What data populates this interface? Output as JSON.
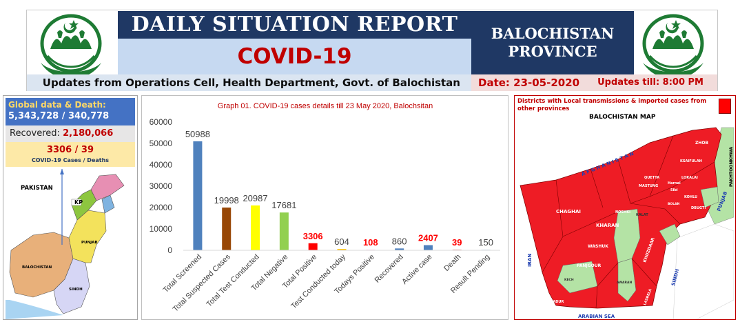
{
  "header": {
    "title": "DAILY SITUATION REPORT",
    "subtitle": "COVID-19",
    "province_line1": "BALOCHISTAN",
    "province_line2": "PROVINCE",
    "updates_from": "Updates from Operations Cell, Health Department, Govt. of Balochistan",
    "date": "Date: 23-05-2020",
    "updates_till": "Updates till: 8:00 PM"
  },
  "left_panel": {
    "global_title": "Global data & Death:",
    "global_value": "5,343,728 / 340,778",
    "recovered_label": "Recovered:",
    "recovered_value": "2,180,066",
    "cases_value": "3306 / 39",
    "cases_label": "COVID-19 Cases / Deaths",
    "map_labels": {
      "pakistan": "PAKISTAN",
      "kp": "KP",
      "punjab": "PUNJAB",
      "balochistan": "BALOCHISTAN",
      "sindh": "SINDH"
    }
  },
  "chart_data": {
    "type": "bar",
    "title": "Graph 01. COVID-19 cases details till 23 May 2020, Balochsitan",
    "xlabel": "",
    "ylabel": "",
    "ylim": [
      0,
      60000
    ],
    "yticks": [
      "0",
      "10000",
      "20000",
      "30000",
      "40000",
      "50000",
      "60000"
    ],
    "grid": false,
    "legend": "none",
    "categories": [
      "Total Screened",
      "Total Suspected Cases",
      "Total Test Conducted",
      "Total Negative",
      "Total Positive",
      "Test Conducted today",
      "Todays Positive",
      "Recovered",
      "Active case",
      "Death",
      "Result Pending"
    ],
    "values": [
      50988,
      19998,
      20987,
      17681,
      3306,
      604,
      108,
      860,
      2407,
      39,
      150
    ],
    "bar_colors": [
      "#4f81bd",
      "#984807",
      "#ffff00",
      "#92d050",
      "#ff0000",
      "#ffc000",
      "#ff99cc",
      "#4f81bd",
      "#4f81bd",
      "#c00000",
      "#95b3d7"
    ],
    "label_colors": [
      "#404040",
      "#404040",
      "#404040",
      "#404040",
      "#ff0000",
      "#404040",
      "#ff0000",
      "#404040",
      "#ff0000",
      "#ff0000",
      "#404040"
    ]
  },
  "map_panel": {
    "legend_text": "Districts with Local transmissions & imported cases from other provinces",
    "map_title": "BALOCHISTAN MAP",
    "labels": {
      "afghanistan": "A F G H A N I S T A N",
      "iran": "IRAN",
      "arabian_sea": "ARABIAN SEA",
      "sindh": "SINDH",
      "punjab": "PUNJAB",
      "pakhtoonkhwa": "PAKHTOONKHWA",
      "zhob": "ZHOB",
      "chaghai": "CHAGHAI",
      "kharan": "KHARAN",
      "washuk": "WASHUK",
      "panjgour": "PANJGOUR",
      "khuzdaar": "KHUZDAAR",
      "kalat": "KALAT",
      "noshki": "NOSHKI",
      "quetta": "QUETTA",
      "mastung": "MASTUNG",
      "kohlu": "KOHLU",
      "ksaifulah": "KSAIFULAH",
      "loralai": "LORALAI",
      "dbugti": "DBUGTI",
      "gwadur": "GWADUR",
      "kech": "KECH",
      "lasbela": "LASBELA",
      "awaran": "AWARAN",
      "harnai": "Harnai",
      "sibi": "Sibi",
      "bolan": "BOLAN"
    }
  },
  "colors": {
    "navy": "#1f3864",
    "light_blue": "#c6d9f1",
    "red": "#c00000",
    "map_red": "#ee1c25",
    "map_green": "#b4e3a5"
  }
}
